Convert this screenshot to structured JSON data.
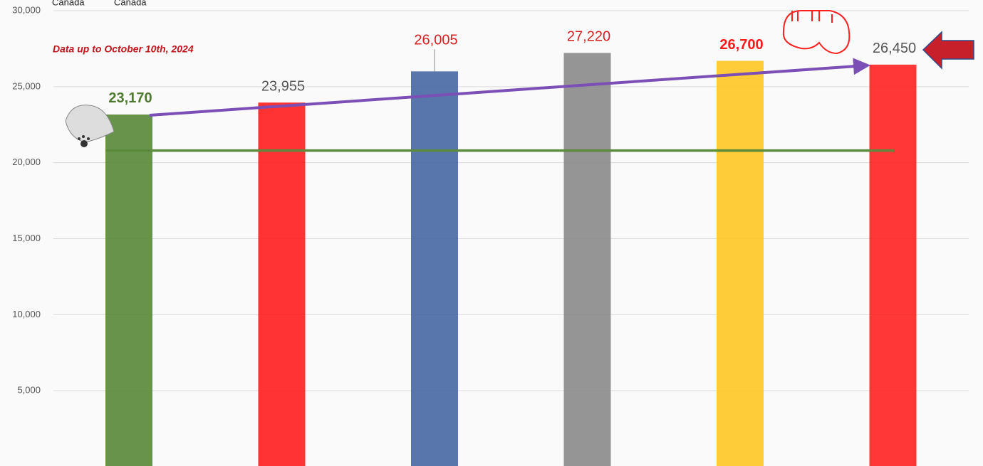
{
  "chart_data": {
    "type": "bar",
    "cropped_labels": [
      "Canada",
      "Canada"
    ],
    "annotation": "Data up to October 10th, 2024",
    "categories": [
      null,
      null,
      null,
      null,
      null,
      null
    ],
    "values": [
      23170,
      23955,
      26005,
      27220,
      26700,
      26450
    ],
    "value_labels": [
      "23,170",
      "23,955",
      "26,005",
      "27,220",
      "26,700",
      "26,450"
    ],
    "colors": [
      "#5b8a3c",
      "#ff2222",
      "#4a69a5",
      "#8c8c8c",
      "#ffc828",
      "#ff2626"
    ],
    "label_colors": [
      "#4e7a30",
      "#555555",
      "#d42020",
      "#d42020",
      "#ff1a1a",
      "#555555"
    ],
    "label_bold": [
      true,
      false,
      false,
      false,
      true,
      false
    ],
    "ylim": [
      0,
      30000
    ],
    "yticks": [
      {
        "value": 5000,
        "label": "5,000"
      },
      {
        "value": 10000,
        "label": "10,000"
      },
      {
        "value": 15000,
        "label": "15,000"
      },
      {
        "value": 20000,
        "label": "20,000"
      },
      {
        "value": 25000,
        "label": "25,000"
      },
      {
        "value": 30000,
        "label": "30,000"
      }
    ],
    "grid": true,
    "reference_line": {
      "value": 20800,
      "color": "#5b8a3c"
    },
    "trend": {
      "values": [
        23120,
        26400
      ],
      "color": "#7b4fb5"
    }
  }
}
